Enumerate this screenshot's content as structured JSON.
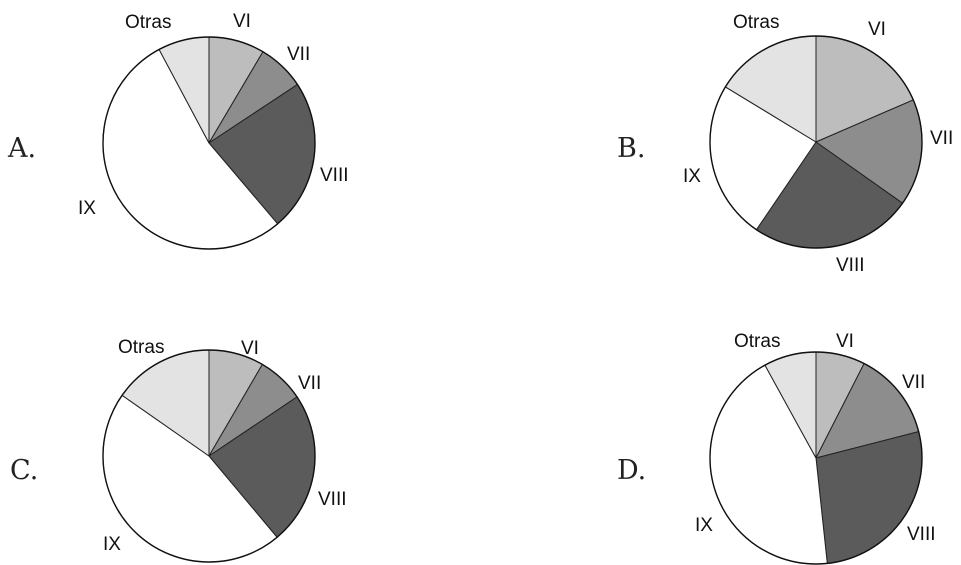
{
  "shade_colors": {
    "VI": "#bdbdbd",
    "VII": "#8d8d8d",
    "VIII": "#5b5b5b",
    "IX": "#ffffff",
    "Otras": "#e3e3e3"
  },
  "chart_data": [
    {
      "type": "pie",
      "option": "A.",
      "slices": [
        {
          "label": "VI",
          "value": 8.5
        },
        {
          "label": "VII",
          "value": 7.2
        },
        {
          "label": "VIII",
          "value": 23.1
        },
        {
          "label": "IX",
          "value": 53.4
        },
        {
          "label": "Otras",
          "value": 7.8
        }
      ]
    },
    {
      "type": "pie",
      "option": "B.",
      "slices": [
        {
          "label": "VI",
          "value": 18.5
        },
        {
          "label": "VII",
          "value": 16.3
        },
        {
          "label": "VIII",
          "value": 24.7
        },
        {
          "label": "IX",
          "value": 24.2
        },
        {
          "label": "Otras",
          "value": 16.3
        }
      ]
    },
    {
      "type": "pie",
      "option": "C.",
      "slices": [
        {
          "label": "VI",
          "value": 8.4
        },
        {
          "label": "VII",
          "value": 7.2
        },
        {
          "label": "VIII",
          "value": 23.3
        },
        {
          "label": "IX",
          "value": 45.8
        },
        {
          "label": "Otras",
          "value": 15.3
        }
      ]
    },
    {
      "type": "pie",
      "option": "D.",
      "slices": [
        {
          "label": "VI",
          "value": 7.5
        },
        {
          "label": "VII",
          "value": 13.5
        },
        {
          "label": "VIII",
          "value": 27.3
        },
        {
          "label": "IX",
          "value": 43.7
        },
        {
          "label": "Otras",
          "value": 8.0
        }
      ]
    }
  ]
}
